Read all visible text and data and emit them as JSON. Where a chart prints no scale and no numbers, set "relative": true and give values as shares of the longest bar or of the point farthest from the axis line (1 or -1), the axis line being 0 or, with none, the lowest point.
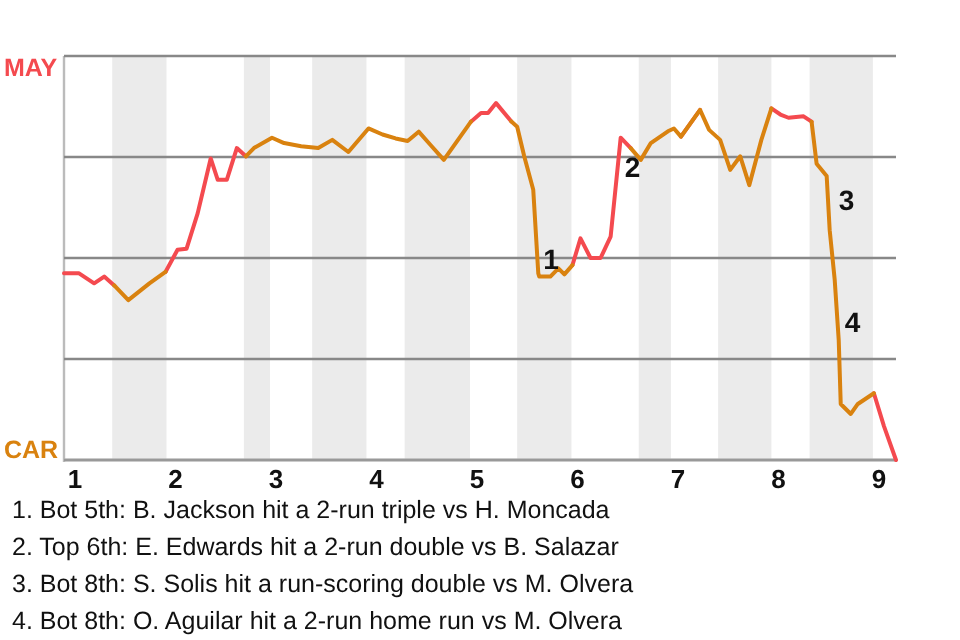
{
  "chart_data": {
    "type": "line",
    "relative": true,
    "x": [
      0.89,
      1.04,
      1.19,
      1.29,
      1.39,
      1.53,
      1.74,
      1.9,
      2.02,
      2.11,
      2.22,
      2.35,
      2.42,
      2.51,
      2.61,
      2.7,
      2.78,
      2.96,
      3.08,
      3.25,
      3.42,
      3.56,
      3.72,
      3.92,
      4.06,
      4.19,
      4.31,
      4.42,
      4.54,
      4.67,
      4.94,
      5.04,
      5.11,
      5.19,
      5.34,
      5.4,
      5.47,
      5.56,
      5.61,
      5.62,
      5.73,
      5.81,
      5.87,
      5.95,
      6.03,
      6.13,
      6.23,
      6.33,
      6.43,
      6.53,
      6.63,
      6.73,
      6.9,
      6.96,
      7.03,
      7.22,
      7.31,
      7.42,
      7.52,
      7.62,
      7.71,
      7.83,
      7.93,
      8.02,
      8.1,
      8.25,
      8.33,
      8.38,
      8.48,
      8.51,
      8.56,
      8.6,
      8.62,
      8.72,
      8.79,
      8.95,
      9.05,
      9.17
    ],
    "series": [
      {
        "color": "#f44a4f",
        "values": [
          0.523,
          0.523,
          0.495,
          0.514,
          0.489,
          null,
          null,
          0.527,
          0.589,
          0.592,
          0.691,
          0.845,
          0.785,
          0.785,
          0.874,
          0.851,
          null,
          null,
          null,
          null,
          null,
          null,
          null,
          null,
          null,
          null,
          null,
          null,
          null,
          null,
          0.948,
          0.972,
          0.972,
          1,
          0.949,
          null,
          null,
          null,
          null,
          null,
          null,
          null,
          null,
          0.546,
          0.621,
          0.566,
          0.566,
          0.626,
          0.903,
          0.874,
          null,
          null,
          null,
          null,
          0.906,
          0.981,
          null,
          null,
          null,
          null,
          null,
          null,
          0.985,
          0.968,
          0.959,
          0.963,
          0.948,
          null,
          null,
          null,
          null,
          null,
          null,
          null,
          null,
          0.187,
          0.095,
          0
        ]
      },
      {
        "color": "#d9820f",
        "values": [
          null,
          null,
          null,
          null,
          0.489,
          0.448,
          0.495,
          0.527,
          null,
          null,
          null,
          null,
          null,
          null,
          null,
          0.851,
          0.874,
          0.903,
          0.888,
          0.879,
          0.874,
          0.897,
          0.863,
          0.929,
          0.912,
          0.901,
          0.894,
          0.92,
          0.882,
          0.841,
          0.948,
          null,
          null,
          null,
          0.949,
          0.934,
          0.851,
          0.757,
          0.523,
          0.514,
          0.514,
          0.537,
          0.52,
          0.546,
          null,
          null,
          null,
          null,
          null,
          0.874,
          0.841,
          0.888,
          0.921,
          0.929,
          0.906,
          0.981,
          0.925,
          0.897,
          0.813,
          0.851,
          0.77,
          0.897,
          0.985,
          null,
          null,
          null,
          0.948,
          0.83,
          0.796,
          0.644,
          0.505,
          0.336,
          0.157,
          0.129,
          0.157,
          0.187,
          null,
          null
        ]
      }
    ],
    "xlim": [
      0.89,
      9.17
    ],
    "xticks": [
      1,
      2,
      3,
      4,
      5,
      6,
      7,
      8,
      9
    ],
    "marker": "none",
    "line_style": "solid",
    "ref_lines": [
      {
        "axis": "y",
        "value": 0,
        "label": "CAR",
        "color": "#999999"
      },
      {
        "axis": "y",
        "value": 0.283,
        "label": null,
        "color": "#888888"
      },
      {
        "axis": "y",
        "value": 0.566,
        "label": null,
        "color": "#888888"
      },
      {
        "axis": "y",
        "value": 0.849,
        "label": null,
        "color": "#888888"
      },
      {
        "axis": "y",
        "value": 1.132,
        "label": "MAY",
        "color": "#888888"
      }
    ],
    "bands": [
      {
        "axis": "x",
        "from": 1.37,
        "to": 1.91,
        "color": "#ebebeb"
      },
      {
        "axis": "x",
        "from": 2.68,
        "to": 2.94,
        "color": "#ebebeb"
      },
      {
        "axis": "x",
        "from": 3.36,
        "to": 3.9,
        "color": "#ebebeb"
      },
      {
        "axis": "x",
        "from": 4.28,
        "to": 4.93,
        "color": "#ebebeb"
      },
      {
        "axis": "x",
        "from": 5.4,
        "to": 5.94,
        "color": "#ebebeb"
      },
      {
        "axis": "x",
        "from": 6.61,
        "to": 6.93,
        "color": "#ebebeb"
      },
      {
        "axis": "x",
        "from": 7.4,
        "to": 7.93,
        "color": "#ebebeb"
      },
      {
        "axis": "x",
        "from": 8.31,
        "to": 8.94,
        "color": "#ebebeb"
      }
    ],
    "annotations": [
      {
        "text": "1",
        "x": 5.62,
        "y": 0.514
      },
      {
        "text": "2",
        "x": 6.43,
        "y": 0.77
      },
      {
        "text": "3",
        "x": 8.56,
        "y": 0.679
      },
      {
        "text": "4",
        "x": 8.62,
        "y": 0.336
      },
      "1. Bot 5th: B. Jackson hit a 2-run triple vs H. Moncada",
      "2. Top 6th: E. Edwards hit a 2-run double vs B. Salazar",
      "3. Bot 8th: S. Solis hit a run-scoring double vs M. Olvera",
      "4. Bot 8th: O. Aguilar hit a 2-run home run vs M. Olvera"
    ]
  }
}
